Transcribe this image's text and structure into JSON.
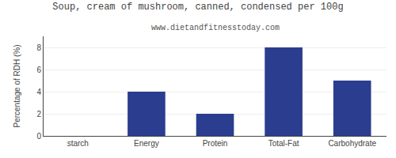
{
  "chart_data": {
    "type": "bar",
    "title": "Soup, cream of mushroom, canned, condensed per 100g",
    "subtitle": "www.dietandfitnesstoday.com",
    "categories": [
      "starch",
      "Energy",
      "Protein",
      "Total-Fat",
      "Carbohydrate"
    ],
    "values": [
      0,
      4,
      2,
      8,
      5
    ],
    "color": "#2b3d8f",
    "ylabel": "Percentage of RDH (%)",
    "ylim": [
      0,
      9
    ],
    "yticks": [
      0,
      2,
      4,
      6,
      8
    ],
    "grid": true
  }
}
